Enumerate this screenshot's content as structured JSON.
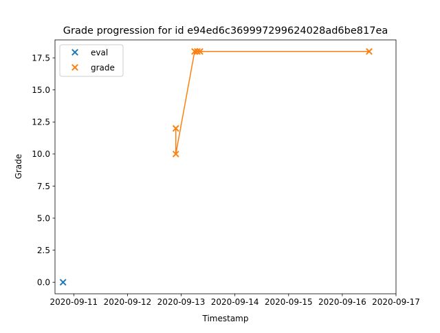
{
  "chart_data": {
    "type": "scatter",
    "title": "Grade progression for id e94ed6c369997299624028ad6be817ea",
    "xlabel": "Timestamp",
    "ylabel": "Grade",
    "x_axis_type": "datetime",
    "xlim": [
      "2020-09-10T15:36",
      "2020-09-17T00:00"
    ],
    "ylim": [
      -0.9,
      18.9
    ],
    "x_ticks": [
      {
        "value": "2020-09-11",
        "label": "2020-09-11"
      },
      {
        "value": "2020-09-12",
        "label": "2020-09-12"
      },
      {
        "value": "2020-09-13",
        "label": "2020-09-13"
      },
      {
        "value": "2020-09-14",
        "label": "2020-09-14"
      },
      {
        "value": "2020-09-15",
        "label": "2020-09-15"
      },
      {
        "value": "2020-09-16",
        "label": "2020-09-16"
      },
      {
        "value": "2020-09-17",
        "label": "2020-09-17"
      }
    ],
    "y_ticks": [
      {
        "value": 0,
        "label": "0.0"
      },
      {
        "value": 2.5,
        "label": "2.5"
      },
      {
        "value": 5,
        "label": "5.0"
      },
      {
        "value": 7.5,
        "label": "7.5"
      },
      {
        "value": 10,
        "label": "10.0"
      },
      {
        "value": 12.5,
        "label": "12.5"
      },
      {
        "value": 15,
        "label": "15.0"
      },
      {
        "value": 17.5,
        "label": "17.5"
      }
    ],
    "grid": false,
    "legend_position": "top-left",
    "series": [
      {
        "name": "eval",
        "color": "#1f77b4",
        "marker": "x",
        "line": false,
        "points": [
          {
            "x": "2020-09-10T19:12",
            "y": 0
          }
        ]
      },
      {
        "name": "grade",
        "color": "#ff7f0e",
        "marker": "x",
        "line": true,
        "points": [
          {
            "x": "2020-09-12T21:36",
            "y": 12
          },
          {
            "x": "2020-09-12T21:36",
            "y": 10
          },
          {
            "x": "2020-09-13T06:00",
            "y": 18
          },
          {
            "x": "2020-09-13T07:12",
            "y": 18
          },
          {
            "x": "2020-09-13T08:24",
            "y": 18
          },
          {
            "x": "2020-09-16T12:00",
            "y": 18
          }
        ]
      }
    ]
  }
}
